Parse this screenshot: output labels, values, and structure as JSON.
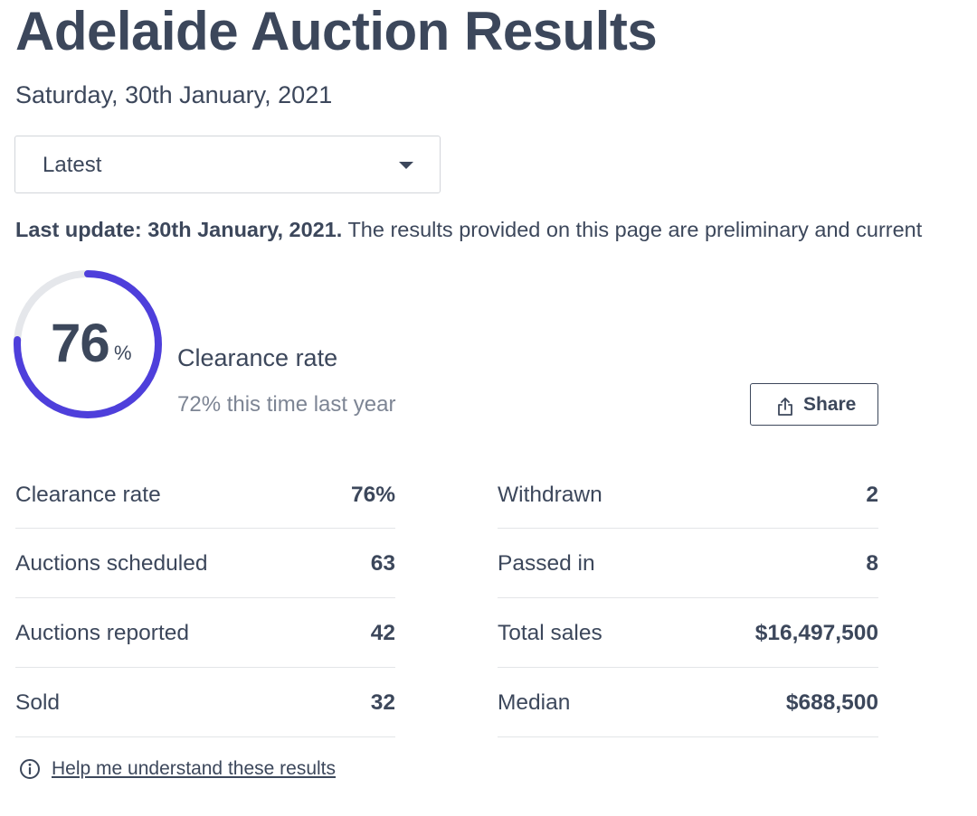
{
  "header": {
    "title": "Adelaide Auction Results",
    "date": "Saturday, 30th January, 2021"
  },
  "period_select": {
    "value": "Latest",
    "icon": "caret-down-icon"
  },
  "update_notice": {
    "bold": "Last update: 30th January, 2021.",
    "text": " The results provided on this page are preliminary and current"
  },
  "gauge": {
    "value": "76",
    "unit": "%",
    "fraction": 0.76,
    "track_color": "#e5e7eb",
    "fill_color": "#4e3fdb",
    "label": "Clearance rate",
    "comparison": "72% this time last year"
  },
  "share": {
    "label": "Share",
    "icon": "share-icon"
  },
  "stats_left": [
    {
      "label": "Clearance rate",
      "value": "76%"
    },
    {
      "label": "Auctions scheduled",
      "value": "63"
    },
    {
      "label": "Auctions reported",
      "value": "42"
    },
    {
      "label": "Sold",
      "value": "32"
    }
  ],
  "stats_right": [
    {
      "label": "Withdrawn",
      "value": "2"
    },
    {
      "label": "Passed in",
      "value": "8"
    },
    {
      "label": "Total sales",
      "value": "$16,497,500"
    },
    {
      "label": "Median",
      "value": "$688,500"
    }
  ],
  "help": {
    "label": "Help me understand these results",
    "icon": "info-icon"
  }
}
